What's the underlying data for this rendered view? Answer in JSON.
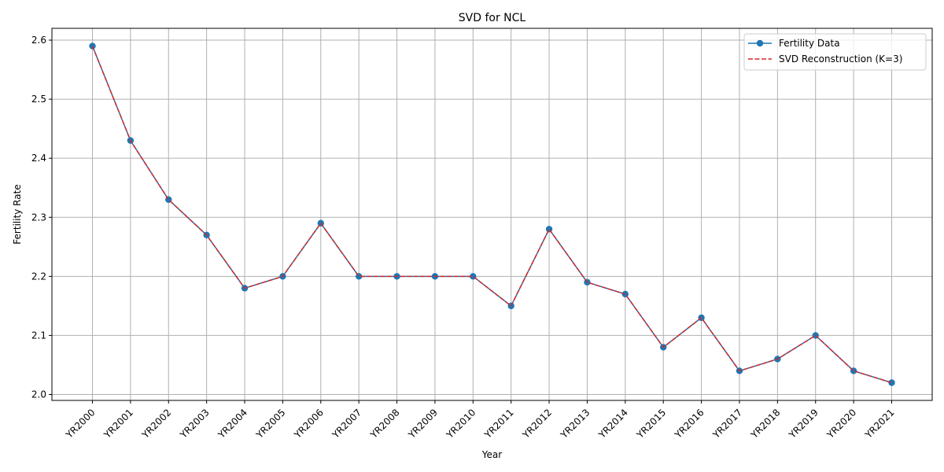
{
  "chart_data": {
    "type": "line",
    "title": "SVD for NCL",
    "xlabel": "Year",
    "ylabel": "Fertility Rate",
    "categories": [
      "YR2000",
      "YR2001",
      "YR2002",
      "YR2003",
      "YR2004",
      "YR2005",
      "YR2006",
      "YR2007",
      "YR2008",
      "YR2009",
      "YR2010",
      "YR2011",
      "YR2012",
      "YR2013",
      "YR2014",
      "YR2015",
      "YR2016",
      "YR2017",
      "YR2018",
      "YR2019",
      "YR2020",
      "YR2021"
    ],
    "ylim": [
      1.99,
      2.62
    ],
    "yticks": [
      "2.0",
      "2.1",
      "2.2",
      "2.3",
      "2.4",
      "2.5",
      "2.6"
    ],
    "grid": true,
    "legend_position": "top-right",
    "series": [
      {
        "name": "Fertility Data",
        "style": "solid-line-with-circle-markers",
        "color": "#1f77b4",
        "values": [
          2.59,
          2.43,
          2.33,
          2.27,
          2.18,
          2.2,
          2.29,
          2.2,
          2.2,
          2.2,
          2.2,
          2.15,
          2.28,
          2.19,
          2.17,
          2.08,
          2.13,
          2.04,
          2.06,
          2.1,
          2.04,
          2.02
        ]
      },
      {
        "name": "SVD Reconstruction (K=3)",
        "style": "dashed-line",
        "color": "#d62728",
        "values": [
          2.59,
          2.43,
          2.33,
          2.27,
          2.18,
          2.2,
          2.29,
          2.2,
          2.2,
          2.2,
          2.2,
          2.15,
          2.28,
          2.19,
          2.17,
          2.08,
          2.13,
          2.04,
          2.06,
          2.1,
          2.04,
          2.02
        ]
      }
    ]
  }
}
